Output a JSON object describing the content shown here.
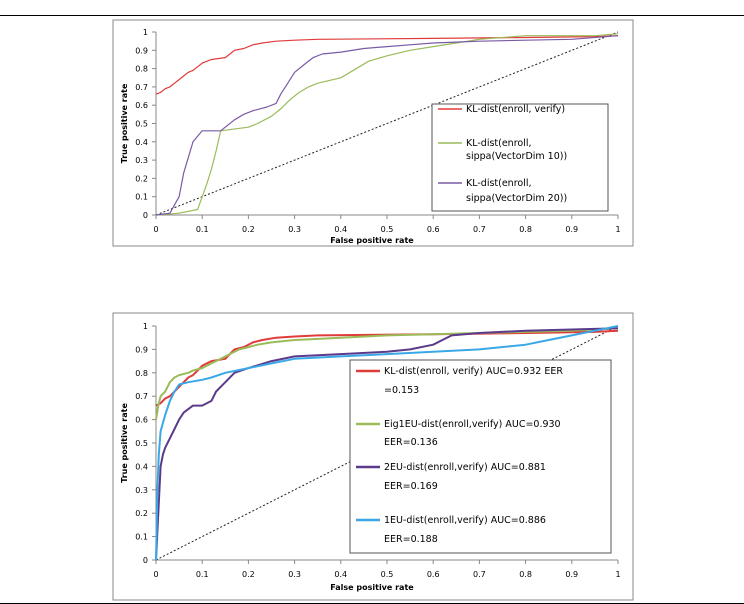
{
  "chart_data": [
    {
      "type": "line",
      "xlabel": "False positive rate",
      "ylabel": "True positive rate",
      "xlim": [
        0,
        1
      ],
      "ylim": [
        0,
        1
      ],
      "x_ticks": [
        "0",
        "0.1",
        "0.2",
        "0.3",
        "0.4",
        "0.5",
        "0.6",
        "0.7",
        "0.8",
        "0.9",
        "1"
      ],
      "y_ticks": [
        "0",
        "0.1",
        "0.2",
        "0.3",
        "0.4",
        "0.5",
        "0.6",
        "0.7",
        "0.8",
        "0.9",
        "1"
      ],
      "grid": false,
      "legend_position": "right",
      "series": [
        {
          "name": "KL-dist(enroll, verify)",
          "color": "#e03b3b",
          "points": [
            [
              0,
              0.66
            ],
            [
              0.01,
              0.67
            ],
            [
              0.02,
              0.69
            ],
            [
              0.03,
              0.7
            ],
            [
              0.04,
              0.72
            ],
            [
              0.05,
              0.74
            ],
            [
              0.06,
              0.76
            ],
            [
              0.07,
              0.78
            ],
            [
              0.08,
              0.79
            ],
            [
              0.09,
              0.81
            ],
            [
              0.1,
              0.83
            ],
            [
              0.11,
              0.84
            ],
            [
              0.12,
              0.85
            ],
            [
              0.15,
              0.86
            ],
            [
              0.16,
              0.88
            ],
            [
              0.17,
              0.9
            ],
            [
              0.19,
              0.91
            ],
            [
              0.21,
              0.93
            ],
            [
              0.23,
              0.94
            ],
            [
              0.26,
              0.95
            ],
            [
              0.3,
              0.955
            ],
            [
              0.35,
              0.96
            ],
            [
              0.6,
              0.965
            ],
            [
              0.8,
              0.97
            ],
            [
              0.95,
              0.975
            ],
            [
              1,
              0.98
            ]
          ]
        },
        {
          "name": "KL-dist(enroll, sippa(VectorDim 10))",
          "color": "#9bbb59",
          "points": [
            [
              0,
              0
            ],
            [
              0.05,
              0.01
            ],
            [
              0.09,
              0.03
            ],
            [
              0.1,
              0.1
            ],
            [
              0.11,
              0.17
            ],
            [
              0.12,
              0.25
            ],
            [
              0.13,
              0.35
            ],
            [
              0.14,
              0.46
            ],
            [
              0.2,
              0.48
            ],
            [
              0.22,
              0.5
            ],
            [
              0.25,
              0.54
            ],
            [
              0.27,
              0.58
            ],
            [
              0.29,
              0.63
            ],
            [
              0.31,
              0.67
            ],
            [
              0.33,
              0.7
            ],
            [
              0.35,
              0.72
            ],
            [
              0.4,
              0.75
            ],
            [
              0.42,
              0.78
            ],
            [
              0.44,
              0.81
            ],
            [
              0.46,
              0.84
            ],
            [
              0.5,
              0.87
            ],
            [
              0.55,
              0.9
            ],
            [
              0.6,
              0.92
            ],
            [
              0.65,
              0.94
            ],
            [
              0.7,
              0.96
            ],
            [
              0.8,
              0.98
            ],
            [
              0.9,
              0.98
            ],
            [
              0.95,
              0.98
            ],
            [
              1,
              0.99
            ]
          ]
        },
        {
          "name": "KL-dist(enroll, sippa(VectorDim 20))",
          "color": "#7a5aa6",
          "points": [
            [
              0,
              0
            ],
            [
              0.03,
              0.01
            ],
            [
              0.05,
              0.1
            ],
            [
              0.06,
              0.23
            ],
            [
              0.08,
              0.4
            ],
            [
              0.1,
              0.46
            ],
            [
              0.14,
              0.46
            ],
            [
              0.17,
              0.52
            ],
            [
              0.19,
              0.55
            ],
            [
              0.21,
              0.57
            ],
            [
              0.24,
              0.59
            ],
            [
              0.26,
              0.61
            ],
            [
              0.27,
              0.66
            ],
            [
              0.28,
              0.7
            ],
            [
              0.3,
              0.78
            ],
            [
              0.32,
              0.82
            ],
            [
              0.34,
              0.86
            ],
            [
              0.36,
              0.88
            ],
            [
              0.4,
              0.89
            ],
            [
              0.45,
              0.91
            ],
            [
              0.5,
              0.92
            ],
            [
              0.55,
              0.93
            ],
            [
              0.6,
              0.94
            ],
            [
              0.65,
              0.945
            ],
            [
              0.7,
              0.95
            ],
            [
              0.8,
              0.955
            ],
            [
              0.9,
              0.96
            ],
            [
              1,
              0.98
            ]
          ]
        }
      ]
    },
    {
      "type": "line",
      "xlabel": "False positive rate",
      "ylabel": "True positive rate",
      "xlim": [
        0,
        1
      ],
      "ylim": [
        0,
        1
      ],
      "x_ticks": [
        "0",
        "0.1",
        "0.2",
        "0.3",
        "0.4",
        "0.5",
        "0.6",
        "0.7",
        "0.8",
        "0.9",
        "1"
      ],
      "y_ticks": [
        "0",
        "0.1",
        "0.2",
        "0.3",
        "0.4",
        "0.5",
        "0.6",
        "0.7",
        "0.8",
        "0.9",
        "1"
      ],
      "grid": false,
      "legend_position": "right",
      "series": [
        {
          "name": "KL-dist(enroll, verify) AUC=0.932 EER =0.153",
          "label_lines": [
            "KL-dist(enroll, verify) AUC=0.932 EER",
            "=0.153"
          ],
          "color": "#e03b3b",
          "points": [
            [
              0,
              0.66
            ],
            [
              0.01,
              0.67
            ],
            [
              0.02,
              0.69
            ],
            [
              0.03,
              0.7
            ],
            [
              0.04,
              0.72
            ],
            [
              0.05,
              0.74
            ],
            [
              0.06,
              0.76
            ],
            [
              0.07,
              0.78
            ],
            [
              0.08,
              0.79
            ],
            [
              0.09,
              0.81
            ],
            [
              0.1,
              0.83
            ],
            [
              0.11,
              0.84
            ],
            [
              0.12,
              0.85
            ],
            [
              0.15,
              0.86
            ],
            [
              0.16,
              0.88
            ],
            [
              0.17,
              0.9
            ],
            [
              0.19,
              0.91
            ],
            [
              0.21,
              0.93
            ],
            [
              0.23,
              0.94
            ],
            [
              0.26,
              0.95
            ],
            [
              0.3,
              0.955
            ],
            [
              0.35,
              0.96
            ],
            [
              0.6,
              0.965
            ],
            [
              0.8,
              0.97
            ],
            [
              0.95,
              0.975
            ],
            [
              1,
              0.98
            ]
          ]
        },
        {
          "name": "Eig1EU-dist(enroll,verify) AUC=0.930 EER=0.136",
          "label_lines": [
            "Eig1EU-dist(enroll,verify) AUC=0.930",
            "EER=0.136"
          ],
          "color": "#9bbb59",
          "points": [
            [
              0,
              0.6
            ],
            [
              0.005,
              0.66
            ],
            [
              0.01,
              0.7
            ],
            [
              0.02,
              0.72
            ],
            [
              0.03,
              0.76
            ],
            [
              0.04,
              0.78
            ],
            [
              0.05,
              0.79
            ],
            [
              0.07,
              0.8
            ],
            [
              0.08,
              0.81
            ],
            [
              0.1,
              0.82
            ],
            [
              0.12,
              0.84
            ],
            [
              0.14,
              0.86
            ],
            [
              0.16,
              0.88
            ],
            [
              0.18,
              0.9
            ],
            [
              0.2,
              0.91
            ],
            [
              0.22,
              0.92
            ],
            [
              0.25,
              0.93
            ],
            [
              0.3,
              0.94
            ],
            [
              0.4,
              0.95
            ],
            [
              0.5,
              0.96
            ],
            [
              0.6,
              0.965
            ],
            [
              0.7,
              0.97
            ],
            [
              0.8,
              0.975
            ],
            [
              0.9,
              0.98
            ],
            [
              1,
              0.99
            ]
          ]
        },
        {
          "name": "2EU-dist(enroll,verify) AUC=0.881 EER=0.169",
          "label_lines": [
            "2EU-dist(enroll,verify) AUC=0.881",
            "EER=0.169"
          ],
          "color": "#5b3a8c",
          "points": [
            [
              0,
              0
            ],
            [
              0.005,
              0.2
            ],
            [
              0.01,
              0.4
            ],
            [
              0.015,
              0.45
            ],
            [
              0.02,
              0.48
            ],
            [
              0.03,
              0.52
            ],
            [
              0.04,
              0.56
            ],
            [
              0.05,
              0.6
            ],
            [
              0.06,
              0.63
            ],
            [
              0.08,
              0.66
            ],
            [
              0.1,
              0.66
            ],
            [
              0.12,
              0.68
            ],
            [
              0.13,
              0.72
            ],
            [
              0.15,
              0.76
            ],
            [
              0.17,
              0.8
            ],
            [
              0.2,
              0.82
            ],
            [
              0.25,
              0.85
            ],
            [
              0.3,
              0.87
            ],
            [
              0.4,
              0.88
            ],
            [
              0.5,
              0.89
            ],
            [
              0.55,
              0.9
            ],
            [
              0.6,
              0.92
            ],
            [
              0.62,
              0.94
            ],
            [
              0.64,
              0.96
            ],
            [
              0.7,
              0.97
            ],
            [
              0.8,
              0.98
            ],
            [
              0.9,
              0.985
            ],
            [
              1,
              0.99
            ]
          ]
        },
        {
          "name": "1EU-dist(enroll,verify) AUC=0.886 EER=0.188",
          "label_lines": [
            "1EU-dist(enroll,verify) AUC=0.886",
            "EER=0.188"
          ],
          "color": "#3aa8e6",
          "points": [
            [
              0,
              0
            ],
            [
              0.003,
              0.3
            ],
            [
              0.006,
              0.45
            ],
            [
              0.01,
              0.55
            ],
            [
              0.02,
              0.62
            ],
            [
              0.03,
              0.68
            ],
            [
              0.04,
              0.72
            ],
            [
              0.05,
              0.75
            ],
            [
              0.07,
              0.76
            ],
            [
              0.1,
              0.77
            ],
            [
              0.12,
              0.78
            ],
            [
              0.15,
              0.8
            ],
            [
              0.2,
              0.82
            ],
            [
              0.25,
              0.84
            ],
            [
              0.3,
              0.86
            ],
            [
              0.4,
              0.87
            ],
            [
              0.5,
              0.88
            ],
            [
              0.6,
              0.89
            ],
            [
              0.7,
              0.9
            ],
            [
              0.8,
              0.92
            ],
            [
              0.85,
              0.94
            ],
            [
              0.9,
              0.96
            ],
            [
              0.95,
              0.98
            ],
            [
              1,
              1
            ]
          ]
        }
      ]
    }
  ]
}
